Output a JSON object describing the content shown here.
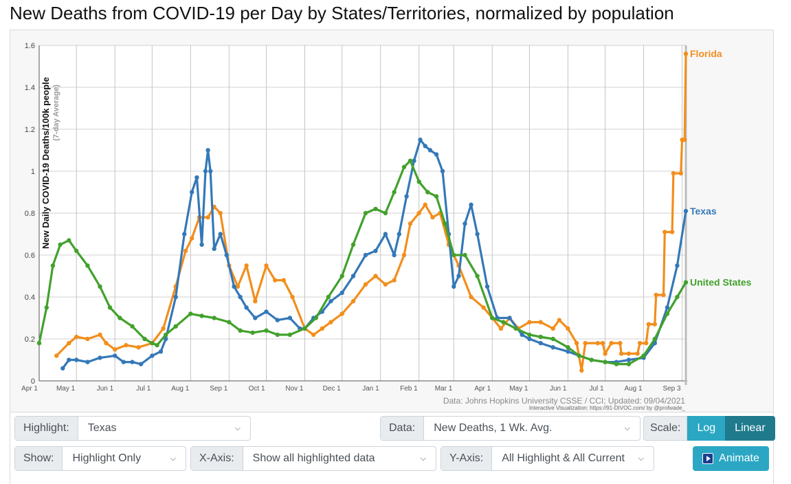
{
  "page": {
    "title": "New Deaths from COVID-19 per Day by States/Territories, normalized by population"
  },
  "controls": {
    "highlight": {
      "label": "Highlight:",
      "value": "Texas"
    },
    "data": {
      "label": "Data:",
      "value": "New Deaths, 1 Wk. Avg."
    },
    "scale": {
      "label": "Scale:",
      "options": [
        "Log",
        "Linear"
      ],
      "selected": "Linear"
    },
    "show": {
      "label": "Show:",
      "value": "Highlight Only"
    },
    "xaxis": {
      "label": "X-Axis:",
      "value": "Show all highlighted data"
    },
    "yaxis": {
      "label": "Y-Axis:",
      "value": "All Highlight & All Current"
    },
    "animate": {
      "label": "Animate"
    }
  },
  "colors": {
    "florida": "#f28e1c",
    "texas": "#3478b8",
    "us": "#42a12c",
    "grid": "#d2d2d2",
    "accent": "#2ba7c4",
    "accent_dark": "#1f7a8c"
  },
  "chart_data": {
    "type": "line",
    "ylabel": "New Daily COVID-19 Deaths/100k people",
    "ylabel_sub": "(7-day Average)",
    "ylim": [
      0,
      1.6
    ],
    "y_ticks": [
      0,
      0.2,
      0.4,
      0.6,
      0.8,
      1,
      1.2,
      1.4,
      1.6
    ],
    "y_tick_labels": [
      "0",
      "0.2",
      "0.4",
      "0.6",
      "0.8",
      "1",
      "1.2",
      "1.4",
      "1.6"
    ],
    "x_range": [
      "2020-04-01",
      "2021-09-04"
    ],
    "x_ticks": [
      "2020-04-01",
      "2020-05-01",
      "2020-06-01",
      "2020-07-01",
      "2020-08-01",
      "2020-09-01",
      "2020-10-01",
      "2020-11-01",
      "2020-12-01",
      "2021-01-01",
      "2021-02-01",
      "2021-03-01",
      "2021-04-01",
      "2021-05-01",
      "2021-06-01",
      "2021-07-01",
      "2021-08-01",
      "2021-09-01"
    ],
    "x_tick_labels": [
      "Apr 1",
      "May 1",
      "Jun 1",
      "Jul 1",
      "Aug 1",
      "Sep 1",
      "Oct 1",
      "Nov 1",
      "Dec 1",
      "Jan 1",
      "Feb 1",
      "Mar 1",
      "Apr 1",
      "May 1",
      "Jun 1",
      "Jul 1",
      "Aug 1",
      "Sep 3"
    ],
    "grid": true,
    "legend": "end-of-line labels",
    "source": "Data: Johns Hopkins University CSSE / CCI; Updated: 09/04/2021",
    "credit": "Interactive Visualization: https://91-DIVOC.com/ by @profwade_",
    "series": [
      {
        "name": "Florida",
        "color": "#f28e1c",
        "points": [
          [
            "2020-04-15",
            0.12
          ],
          [
            "2020-04-25",
            0.18
          ],
          [
            "2020-05-01",
            0.21
          ],
          [
            "2020-05-10",
            0.2
          ],
          [
            "2020-05-20",
            0.22
          ],
          [
            "2020-05-25",
            0.18
          ],
          [
            "2020-06-01",
            0.15
          ],
          [
            "2020-06-10",
            0.17
          ],
          [
            "2020-06-20",
            0.16
          ],
          [
            "2020-07-01",
            0.18
          ],
          [
            "2020-07-10",
            0.25
          ],
          [
            "2020-07-20",
            0.45
          ],
          [
            "2020-07-28",
            0.62
          ],
          [
            "2020-08-02",
            0.68
          ],
          [
            "2020-08-08",
            0.78
          ],
          [
            "2020-08-15",
            0.78
          ],
          [
            "2020-08-20",
            0.83
          ],
          [
            "2020-08-25",
            0.8
          ],
          [
            "2020-09-01",
            0.55
          ],
          [
            "2020-09-08",
            0.45
          ],
          [
            "2020-09-15",
            0.55
          ],
          [
            "2020-09-22",
            0.38
          ],
          [
            "2020-10-01",
            0.55
          ],
          [
            "2020-10-08",
            0.48
          ],
          [
            "2020-10-15",
            0.48
          ],
          [
            "2020-10-22",
            0.4
          ],
          [
            "2020-11-01",
            0.25
          ],
          [
            "2020-11-08",
            0.22
          ],
          [
            "2020-11-15",
            0.25
          ],
          [
            "2020-11-22",
            0.28
          ],
          [
            "2020-12-01",
            0.32
          ],
          [
            "2020-12-10",
            0.38
          ],
          [
            "2020-12-20",
            0.46
          ],
          [
            "2020-12-28",
            0.5
          ],
          [
            "2021-01-05",
            0.46
          ],
          [
            "2021-01-12",
            0.48
          ],
          [
            "2021-01-20",
            0.6
          ],
          [
            "2021-01-25",
            0.75
          ],
          [
            "2021-02-01",
            0.8
          ],
          [
            "2021-02-06",
            0.84
          ],
          [
            "2021-02-12",
            0.78
          ],
          [
            "2021-02-18",
            0.8
          ],
          [
            "2021-02-25",
            0.65
          ],
          [
            "2021-03-05",
            0.55
          ],
          [
            "2021-03-15",
            0.4
          ],
          [
            "2021-03-25",
            0.35
          ],
          [
            "2021-04-01",
            0.3
          ],
          [
            "2021-04-08",
            0.25
          ],
          [
            "2021-04-15",
            0.3
          ],
          [
            "2021-04-22",
            0.25
          ],
          [
            "2021-05-01",
            0.28
          ],
          [
            "2021-05-10",
            0.28
          ],
          [
            "2021-05-20",
            0.25
          ],
          [
            "2021-05-25",
            0.29
          ],
          [
            "2021-06-01",
            0.25
          ],
          [
            "2021-06-08",
            0.18
          ],
          [
            "2021-06-12",
            0.05
          ],
          [
            "2021-06-15",
            0.18
          ],
          [
            "2021-06-25",
            0.18
          ],
          [
            "2021-06-29",
            0.18
          ],
          [
            "2021-07-01",
            0.13
          ],
          [
            "2021-07-06",
            0.18
          ],
          [
            "2021-07-13",
            0.18
          ],
          [
            "2021-07-14",
            0.13
          ],
          [
            "2021-07-20",
            0.13
          ],
          [
            "2021-07-27",
            0.13
          ],
          [
            "2021-07-29",
            0.18
          ],
          [
            "2021-08-03",
            0.18
          ],
          [
            "2021-08-05",
            0.27
          ],
          [
            "2021-08-10",
            0.27
          ],
          [
            "2021-08-11",
            0.41
          ],
          [
            "2021-08-17",
            0.41
          ],
          [
            "2021-08-18",
            0.71
          ],
          [
            "2021-08-24",
            0.71
          ],
          [
            "2021-08-25",
            0.99
          ],
          [
            "2021-08-31",
            0.99
          ],
          [
            "2021-09-01",
            1.15
          ],
          [
            "2021-09-03",
            1.15
          ],
          [
            "2021-09-04",
            1.56
          ]
        ]
      },
      {
        "name": "Texas",
        "color": "#3478b8",
        "points": [
          [
            "2020-04-20",
            0.06
          ],
          [
            "2020-04-25",
            0.1
          ],
          [
            "2020-05-01",
            0.1
          ],
          [
            "2020-05-10",
            0.09
          ],
          [
            "2020-05-20",
            0.11
          ],
          [
            "2020-06-01",
            0.12
          ],
          [
            "2020-06-08",
            0.09
          ],
          [
            "2020-06-15",
            0.09
          ],
          [
            "2020-06-22",
            0.08
          ],
          [
            "2020-07-01",
            0.12
          ],
          [
            "2020-07-08",
            0.14
          ],
          [
            "2020-07-12",
            0.2
          ],
          [
            "2020-07-20",
            0.4
          ],
          [
            "2020-07-27",
            0.7
          ],
          [
            "2020-08-02",
            0.9
          ],
          [
            "2020-08-06",
            0.97
          ],
          [
            "2020-08-10",
            0.65
          ],
          [
            "2020-08-13",
            1.0
          ],
          [
            "2020-08-15",
            1.1
          ],
          [
            "2020-08-17",
            1.0
          ],
          [
            "2020-08-20",
            0.63
          ],
          [
            "2020-08-25",
            0.7
          ],
          [
            "2020-08-30",
            0.6
          ],
          [
            "2020-09-05",
            0.45
          ],
          [
            "2020-09-10",
            0.4
          ],
          [
            "2020-09-15",
            0.35
          ],
          [
            "2020-09-22",
            0.3
          ],
          [
            "2020-10-01",
            0.33
          ],
          [
            "2020-10-10",
            0.29
          ],
          [
            "2020-10-20",
            0.3
          ],
          [
            "2020-10-28",
            0.25
          ],
          [
            "2020-11-01",
            0.25
          ],
          [
            "2020-11-08",
            0.3
          ],
          [
            "2020-11-15",
            0.33
          ],
          [
            "2020-11-22",
            0.38
          ],
          [
            "2020-12-01",
            0.42
          ],
          [
            "2020-12-10",
            0.5
          ],
          [
            "2020-12-20",
            0.6
          ],
          [
            "2020-12-28",
            0.62
          ],
          [
            "2021-01-05",
            0.7
          ],
          [
            "2021-01-12",
            0.6
          ],
          [
            "2021-01-16",
            0.7
          ],
          [
            "2021-01-22",
            0.88
          ],
          [
            "2021-01-28",
            1.05
          ],
          [
            "2021-02-02",
            1.15
          ],
          [
            "2021-02-06",
            1.12
          ],
          [
            "2021-02-10",
            1.1
          ],
          [
            "2021-02-15",
            1.08
          ],
          [
            "2021-02-20",
            1.0
          ],
          [
            "2021-02-25",
            0.7
          ],
          [
            "2021-03-01",
            0.45
          ],
          [
            "2021-03-05",
            0.5
          ],
          [
            "2021-03-10",
            0.75
          ],
          [
            "2021-03-15",
            0.84
          ],
          [
            "2021-03-20",
            0.7
          ],
          [
            "2021-03-28",
            0.45
          ],
          [
            "2021-04-05",
            0.3
          ],
          [
            "2021-04-15",
            0.3
          ],
          [
            "2021-04-25",
            0.22
          ],
          [
            "2021-05-01",
            0.2
          ],
          [
            "2021-05-10",
            0.18
          ],
          [
            "2021-05-20",
            0.16
          ],
          [
            "2021-06-01",
            0.14
          ],
          [
            "2021-06-10",
            0.12
          ],
          [
            "2021-06-20",
            0.1
          ],
          [
            "2021-07-01",
            0.09
          ],
          [
            "2021-07-10",
            0.09
          ],
          [
            "2021-07-20",
            0.1
          ],
          [
            "2021-08-01",
            0.11
          ],
          [
            "2021-08-10",
            0.18
          ],
          [
            "2021-08-20",
            0.35
          ],
          [
            "2021-08-28",
            0.55
          ],
          [
            "2021-09-04",
            0.81
          ]
        ]
      },
      {
        "name": "United States",
        "color": "#42a12c",
        "points": [
          [
            "2020-04-01",
            0.18
          ],
          [
            "2020-04-07",
            0.35
          ],
          [
            "2020-04-12",
            0.55
          ],
          [
            "2020-04-18",
            0.65
          ],
          [
            "2020-04-25",
            0.67
          ],
          [
            "2020-05-01",
            0.62
          ],
          [
            "2020-05-10",
            0.55
          ],
          [
            "2020-05-20",
            0.45
          ],
          [
            "2020-05-28",
            0.35
          ],
          [
            "2020-06-05",
            0.3
          ],
          [
            "2020-06-15",
            0.26
          ],
          [
            "2020-06-25",
            0.2
          ],
          [
            "2020-07-01",
            0.18
          ],
          [
            "2020-07-05",
            0.17
          ],
          [
            "2020-07-12",
            0.22
          ],
          [
            "2020-07-20",
            0.26
          ],
          [
            "2020-08-01",
            0.32
          ],
          [
            "2020-08-10",
            0.31
          ],
          [
            "2020-08-20",
            0.3
          ],
          [
            "2020-09-01",
            0.28
          ],
          [
            "2020-09-10",
            0.24
          ],
          [
            "2020-09-20",
            0.23
          ],
          [
            "2020-10-01",
            0.24
          ],
          [
            "2020-10-10",
            0.22
          ],
          [
            "2020-10-20",
            0.22
          ],
          [
            "2020-11-01",
            0.25
          ],
          [
            "2020-11-10",
            0.3
          ],
          [
            "2020-11-20",
            0.4
          ],
          [
            "2020-12-01",
            0.5
          ],
          [
            "2020-12-10",
            0.65
          ],
          [
            "2020-12-20",
            0.8
          ],
          [
            "2020-12-28",
            0.82
          ],
          [
            "2021-01-05",
            0.8
          ],
          [
            "2021-01-12",
            0.9
          ],
          [
            "2021-01-20",
            1.02
          ],
          [
            "2021-01-25",
            1.05
          ],
          [
            "2021-02-01",
            0.95
          ],
          [
            "2021-02-08",
            0.9
          ],
          [
            "2021-02-15",
            0.88
          ],
          [
            "2021-02-22",
            0.75
          ],
          [
            "2021-03-01",
            0.6
          ],
          [
            "2021-03-10",
            0.6
          ],
          [
            "2021-03-20",
            0.5
          ],
          [
            "2021-04-01",
            0.3
          ],
          [
            "2021-04-10",
            0.28
          ],
          [
            "2021-04-20",
            0.25
          ],
          [
            "2021-05-01",
            0.22
          ],
          [
            "2021-05-10",
            0.21
          ],
          [
            "2021-05-20",
            0.2
          ],
          [
            "2021-06-01",
            0.16
          ],
          [
            "2021-06-10",
            0.12
          ],
          [
            "2021-06-20",
            0.1
          ],
          [
            "2021-07-01",
            0.09
          ],
          [
            "2021-07-10",
            0.08
          ],
          [
            "2021-07-20",
            0.08
          ],
          [
            "2021-08-01",
            0.12
          ],
          [
            "2021-08-10",
            0.2
          ],
          [
            "2021-08-20",
            0.32
          ],
          [
            "2021-08-28",
            0.4
          ],
          [
            "2021-09-04",
            0.47
          ]
        ]
      }
    ]
  }
}
